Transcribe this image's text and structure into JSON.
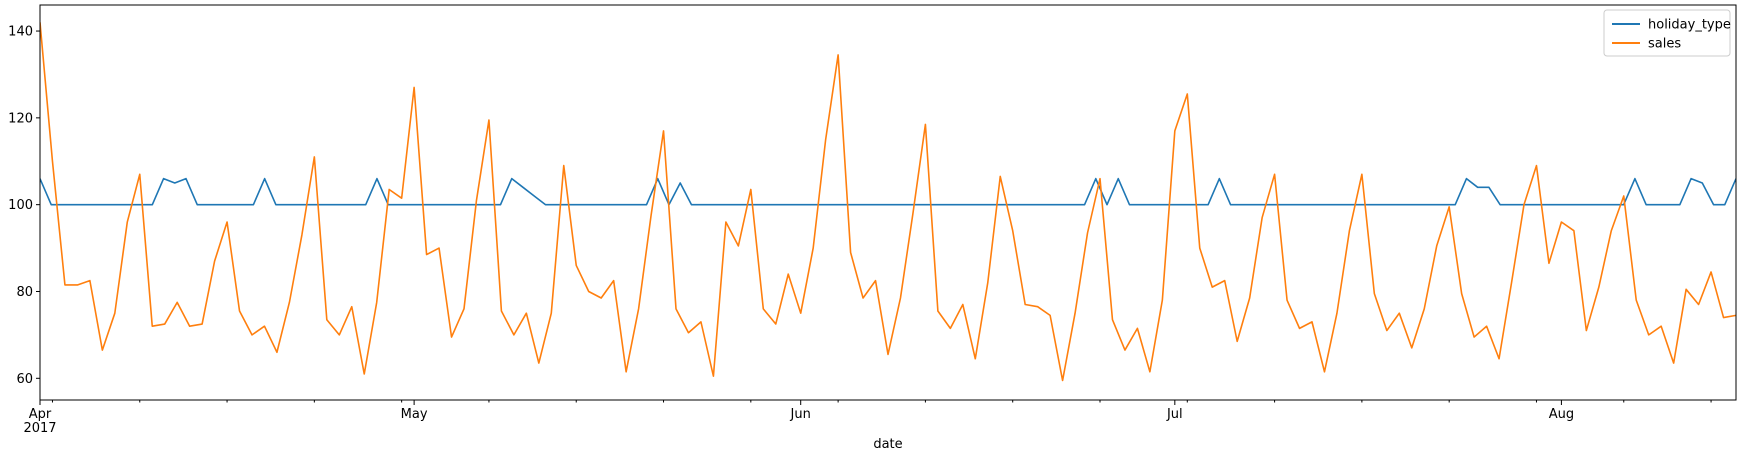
{
  "chart_data": {
    "type": "line",
    "xlabel": "date",
    "ylabel": "",
    "x_start": "2017-04-01",
    "x_end": "2017-08-15",
    "ylim": [
      55,
      146
    ],
    "y_ticks": [
      60,
      80,
      100,
      120,
      140
    ],
    "x_major_ticks": [
      {
        "date": "2017-04-01",
        "label": "Apr",
        "sublabel": "2017"
      },
      {
        "date": "2017-05-01",
        "label": "May",
        "sublabel": ""
      },
      {
        "date": "2017-06-01",
        "label": "Jun",
        "sublabel": ""
      },
      {
        "date": "2017-07-01",
        "label": "Jul",
        "sublabel": ""
      },
      {
        "date": "2017-08-01",
        "label": "Aug",
        "sublabel": ""
      }
    ],
    "grid": false,
    "legend": "top-right",
    "series": [
      {
        "name": "holiday_type",
        "color": "#1f77b4",
        "values": [
          106,
          100,
          100,
          100,
          100,
          100,
          100,
          100,
          100,
          100,
          100,
          106,
          105,
          106,
          100,
          100,
          100,
          100,
          100,
          100,
          106,
          100,
          100,
          100,
          100,
          100,
          100,
          100,
          100,
          100,
          106,
          100,
          100,
          100,
          100,
          100,
          100,
          100,
          100,
          100,
          100,
          100,
          106,
          104,
          102,
          100,
          100,
          100,
          100,
          100,
          100,
          100,
          100,
          100,
          100,
          106,
          100,
          105,
          100,
          100,
          100,
          100,
          100,
          100,
          100,
          100,
          100,
          100,
          100,
          100,
          100,
          100,
          100,
          100,
          100,
          100,
          100,
          100,
          100,
          100,
          100,
          100,
          100,
          100,
          100,
          100,
          100,
          100,
          100,
          100,
          100,
          100,
          100,
          100,
          106,
          100,
          106,
          100,
          100,
          100,
          100,
          100,
          100,
          100,
          100,
          106,
          100,
          100,
          100,
          100,
          100,
          100,
          100,
          100,
          100,
          100,
          100,
          100,
          100,
          100,
          100,
          100,
          100,
          100,
          100,
          100,
          100,
          106,
          104,
          104,
          100,
          100,
          100,
          100,
          100,
          100,
          100,
          100,
          100,
          100,
          100,
          100,
          106,
          100,
          100,
          100,
          100,
          106,
          105,
          100,
          100,
          106
        ]
      },
      {
        "name": "sales",
        "color": "#ff7f0e",
        "values": [
          142,
          110,
          81.5,
          81.5,
          82.5,
          66.5,
          75,
          96,
          107,
          72,
          72.5,
          77.5,
          72,
          72.5,
          87,
          96,
          75.5,
          70,
          72,
          66,
          77.5,
          93,
          111,
          73.5,
          70,
          76.5,
          61,
          77.5,
          103.5,
          101.5,
          127,
          88.5,
          90,
          69.5,
          76,
          101,
          119.5,
          75.5,
          70,
          75,
          63.5,
          75,
          109,
          86,
          80,
          78.5,
          82.5,
          61.5,
          76,
          97.5,
          117,
          76,
          70.5,
          73,
          60.5,
          96,
          90.5,
          103.5,
          76,
          72.5,
          84,
          75,
          90,
          115,
          134.5,
          89,
          78.5,
          82.5,
          65.5,
          78.5,
          98,
          118.5,
          75.5,
          71.5,
          77,
          64.5,
          82,
          106.5,
          94,
          77,
          76.5,
          74.5,
          59.5,
          75,
          93.5,
          106,
          73.5,
          66.5,
          71.5,
          61.5,
          78,
          117,
          125.5,
          90,
          81,
          82.5,
          68.5,
          78.5,
          97,
          107,
          78,
          71.5,
          73,
          61.5,
          75,
          94,
          107,
          79.5,
          71,
          75,
          67,
          76,
          90.5,
          99.5,
          79.5,
          69.5,
          72,
          64.5,
          82,
          100,
          109,
          86.5,
          96,
          94,
          71,
          81,
          94,
          102,
          78,
          70,
          72,
          63.5,
          80.5,
          77,
          84.5,
          74,
          74.5
        ]
      }
    ]
  }
}
